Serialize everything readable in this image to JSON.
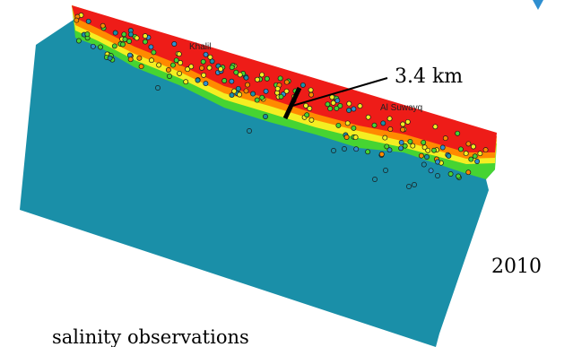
{
  "map": {
    "place_labels": [
      "Khalil",
      "Al Suwayq"
    ],
    "scale_label": "3.4 km",
    "year": "2010",
    "caption": "salinity observations"
  },
  "colors": {
    "sea": "#1a8fa8",
    "zone_red": "#ee1c18",
    "zone_orange": "#ff8a00",
    "zone_yellow": "#f4ee22",
    "zone_green": "#46d432",
    "corner_blue": "#2f8fd0",
    "marker_outline": "#1a1a1a"
  }
}
